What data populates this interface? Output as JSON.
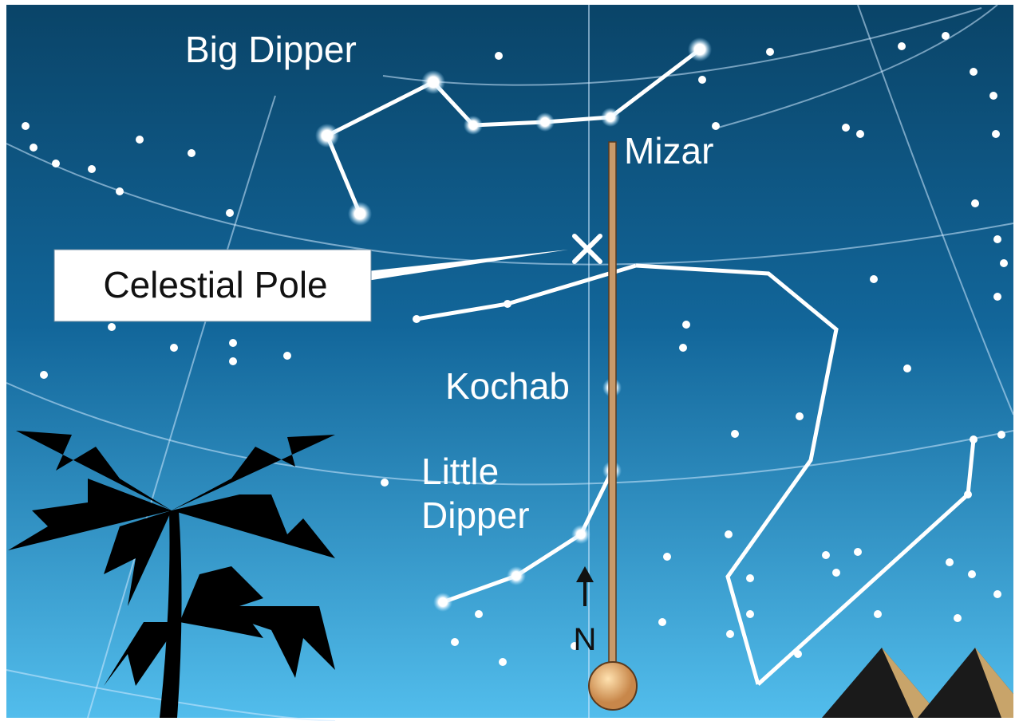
{
  "labels": {
    "big_dipper": "Big Dipper",
    "mizar": "Mizar",
    "celestial_pole": "Celestial Pole",
    "kochab": "Kochab",
    "little_dipper": [
      "Little",
      "Dipper"
    ],
    "north": "N"
  }
}
